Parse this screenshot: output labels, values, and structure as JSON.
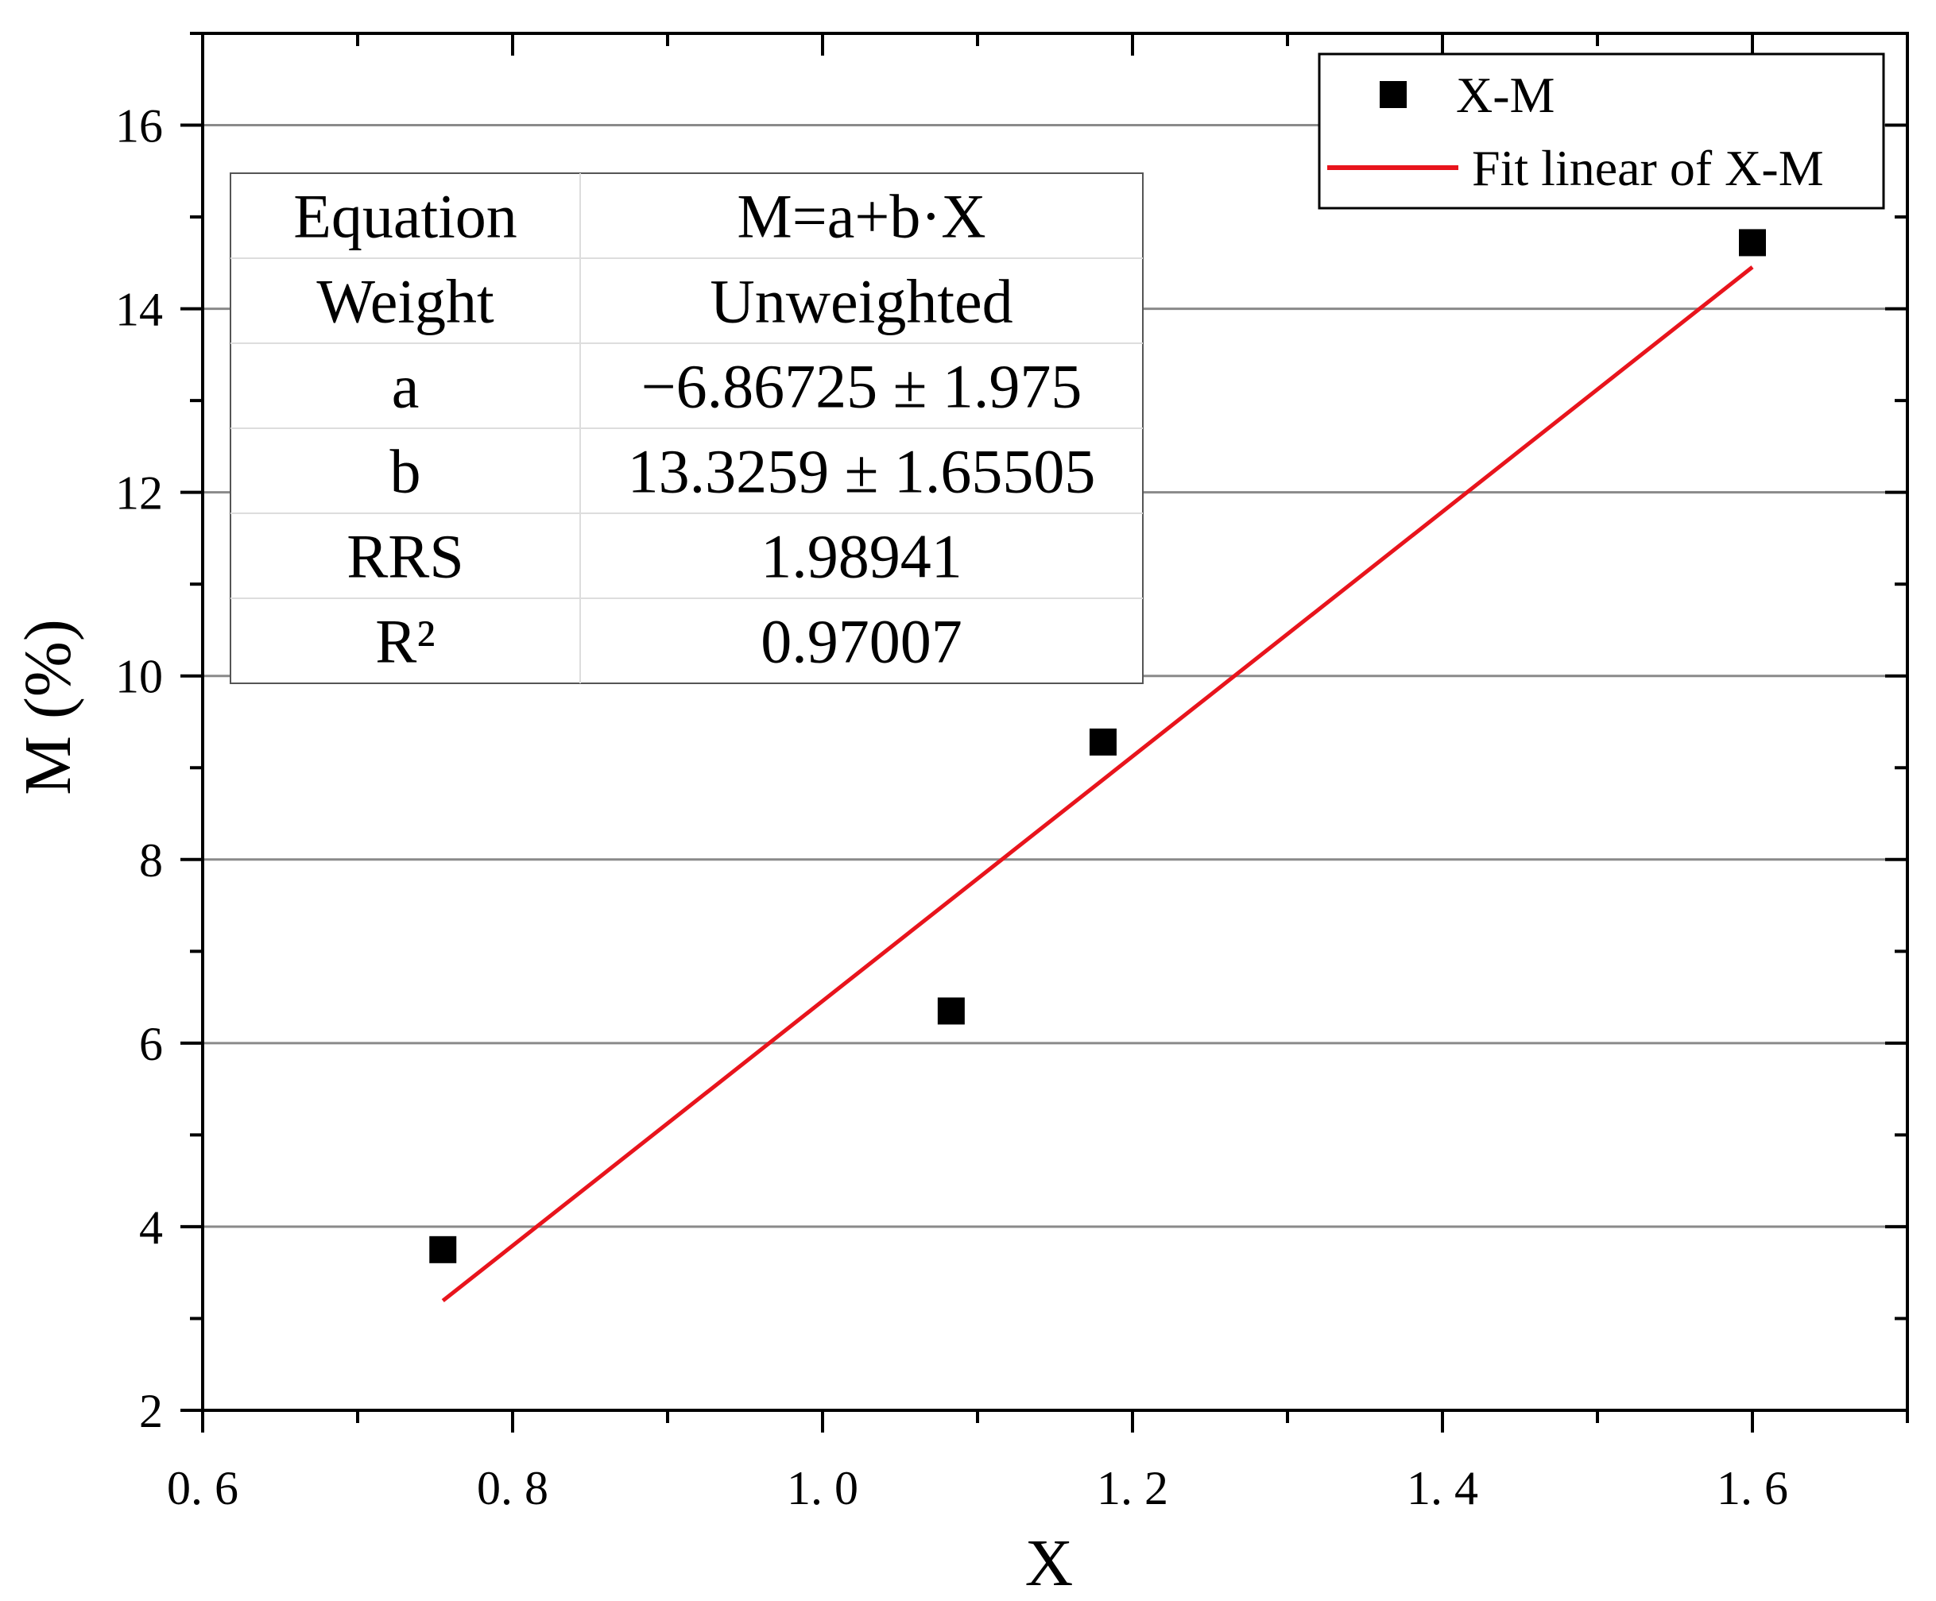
{
  "chart_data": {
    "type": "scatter",
    "xlabel": "X",
    "ylabel": "M (%)",
    "xlim": [
      0.6,
      1.7
    ],
    "ylim": [
      2,
      17
    ],
    "x_ticks": [
      0.6,
      0.8,
      1.0,
      1.2,
      1.4,
      1.6
    ],
    "x_tick_labels": [
      "0. 6",
      "0. 8",
      "1. 0",
      "1. 2",
      "1. 4",
      "1. 6"
    ],
    "y_ticks": [
      2,
      4,
      6,
      8,
      10,
      12,
      14,
      16
    ],
    "y_tick_labels": [
      "2",
      "4",
      "6",
      "8",
      "10",
      "12",
      "14",
      "16"
    ],
    "gridlines_y": true,
    "series": [
      {
        "name": "X-M",
        "kind": "scatter",
        "marker": "square",
        "color": "#000000",
        "x": [
          0.755,
          1.083,
          1.181,
          1.6
        ],
        "y": [
          3.75,
          6.35,
          9.28,
          14.72
        ]
      },
      {
        "name": "Fit linear of X-M",
        "kind": "line",
        "color": "#e8141c",
        "intercept": -6.86725,
        "slope": 13.3259,
        "x_range": [
          0.755,
          1.6
        ]
      }
    ],
    "legend": {
      "position": "top-right",
      "entries": [
        "X-M",
        "Fit linear of X-M"
      ]
    },
    "fit_table": {
      "position": "top-left",
      "rows": [
        [
          "Equation",
          "M=a+b·X"
        ],
        [
          "Weight",
          "Unweighted"
        ],
        [
          "a",
          "−6.86725 ± 1.975"
        ],
        [
          "b",
          "13.3259 ± 1.65505"
        ],
        [
          "RRS",
          "1.98941"
        ],
        [
          "R²",
          "0.97007"
        ]
      ]
    }
  }
}
